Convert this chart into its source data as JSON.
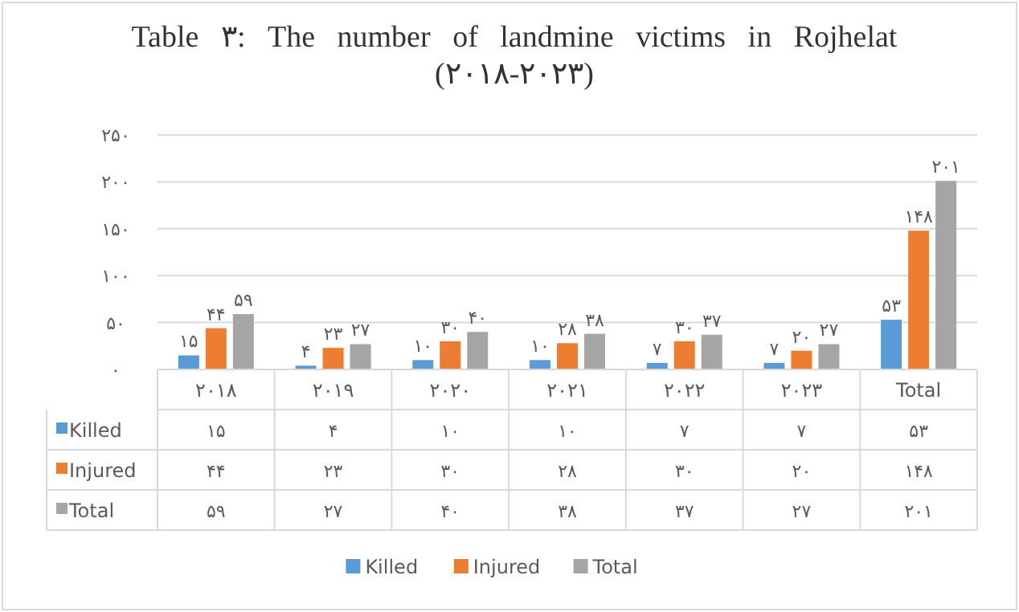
{
  "chart_data": {
    "type": "bar",
    "title": "Table ۳: The number of landmine victims in Rojhelat",
    "subtitle": "(۲۰۱۸-۲۰۲۳)",
    "categories": [
      "۲۰۱۸",
      "۲۰۱۹",
      "۲۰۲۰",
      "۲۰۲۱",
      "۲۰۲۲",
      "۲۰۲۳",
      "Total"
    ],
    "series": [
      {
        "name": "Killed",
        "color": "#5b9bd5",
        "values": [
          15,
          4,
          10,
          10,
          7,
          7,
          53
        ],
        "value_labels": [
          "۱۵",
          "۴",
          "۱۰",
          "۱۰",
          "۷",
          "۷",
          "۵۳"
        ]
      },
      {
        "name": "Injured",
        "color": "#ed7d31",
        "values": [
          44,
          23,
          30,
          28,
          30,
          20,
          148
        ],
        "value_labels": [
          "۴۴",
          "۲۳",
          "۳۰",
          "۲۸",
          "۳۰",
          "۲۰",
          "۱۴۸"
        ]
      },
      {
        "name": "Total",
        "color": "#a5a5a5",
        "values": [
          59,
          27,
          40,
          38,
          37,
          27,
          201
        ],
        "value_labels": [
          "۵۹",
          "۲۷",
          "۴۰",
          "۳۸",
          "۳۷",
          "۲۷",
          "۲۰۱"
        ]
      }
    ],
    "ylim": [
      0,
      250
    ],
    "yticks": [
      {
        "value": 0,
        "label": "۰"
      },
      {
        "value": 50,
        "label": "۵۰"
      },
      {
        "value": 100,
        "label": "۱۰۰"
      },
      {
        "value": 150,
        "label": "۱۵۰"
      },
      {
        "value": 200,
        "label": "۲۰۰"
      },
      {
        "value": 250,
        "label": "۲۵۰"
      }
    ],
    "grid": "y",
    "legend": "bottom"
  }
}
